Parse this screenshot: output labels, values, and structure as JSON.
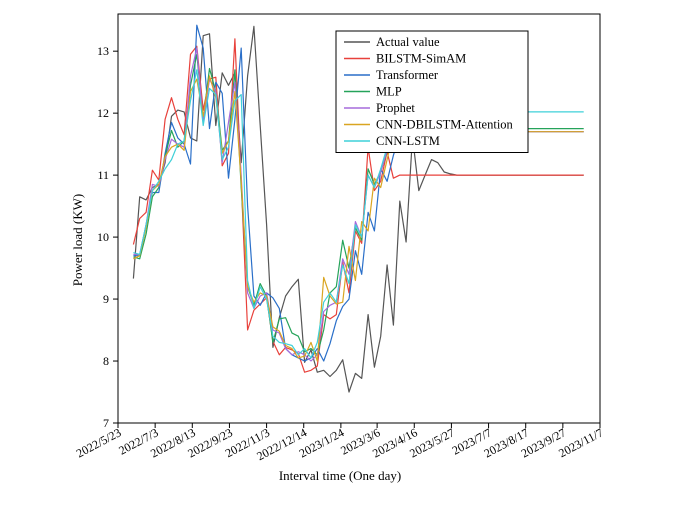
{
  "chart_data": {
    "type": "line",
    "title": "",
    "xlabel": "Interval time (One day)",
    "ylabel": "Power load (KW)",
    "ylim": [
      7,
      13.6
    ],
    "y_ticks": [
      7,
      8,
      9,
      10,
      11,
      12,
      13
    ],
    "y_tick_labels": [
      "7",
      "8",
      "9",
      "10",
      "11",
      "12",
      "13"
    ],
    "x_tick_labels": [
      "2022/5/23",
      "2022/7/3",
      "2022/8/13",
      "2022/9/23",
      "2022/11/3",
      "2022/12/14",
      "2023/1/24",
      "2023/3/6",
      "2023/4/16",
      "2023/5/27",
      "2023/7/7",
      "2023/8/17",
      "2023/9/27",
      "2023/11/7"
    ],
    "x_tick_positions": [
      0,
      41,
      82,
      123,
      164,
      205,
      246,
      286,
      327,
      368,
      409,
      450,
      491,
      532
    ],
    "xlim": [
      0,
      532
    ],
    "grid": false,
    "legend_position": "top-right",
    "x": [
      17,
      24,
      31,
      38,
      45,
      52,
      59,
      66,
      73,
      80,
      87,
      94,
      101,
      108,
      115,
      122,
      129,
      136,
      143,
      150,
      157,
      164,
      171,
      178,
      185,
      192,
      199,
      206,
      213,
      220,
      227,
      234,
      241,
      248,
      255,
      262,
      269,
      276,
      283,
      290,
      297,
      304,
      311,
      318,
      325,
      332,
      339,
      346,
      353,
      360,
      367,
      374,
      381,
      388,
      395,
      402,
      409,
      416,
      423,
      430,
      437,
      444,
      451,
      458,
      465,
      472,
      479,
      486,
      493,
      500,
      507,
      514
    ],
    "series": [
      {
        "name": "Actual value",
        "color": "#555555",
        "values": [
          9.33,
          10.65,
          10.6,
          10.8,
          10.85,
          11.2,
          11.95,
          12.05,
          12.02,
          11.6,
          11.55,
          13.25,
          13.28,
          11.8,
          12.65,
          12.45,
          12.65,
          11.2,
          12.6,
          13.4,
          11.8,
          10.2,
          8.22,
          8.7,
          9.05,
          9.2,
          9.32,
          7.98,
          8.18,
          7.82,
          7.85,
          7.75,
          7.85,
          8.02,
          7.5,
          7.8,
          7.72,
          8.75,
          7.9,
          8.4,
          9.55,
          8.58,
          10.58,
          9.92,
          11.62,
          10.75,
          11.0,
          11.25,
          11.2,
          11.05,
          11.02,
          11.0,
          11.0,
          11.0,
          11.0,
          11.0,
          11.0,
          11.0,
          11.0,
          11.0,
          11.0,
          11.0,
          11.0,
          11.0,
          11.0,
          11.0,
          11.0,
          11.0,
          11.0,
          11.0,
          11.0,
          11.0
        ]
      },
      {
        "name": "BILSTM-SimAM",
        "color": "#e8413b",
        "values": [
          9.88,
          10.3,
          10.4,
          11.08,
          10.92,
          11.9,
          12.25,
          11.9,
          11.65,
          12.95,
          13.08,
          12.05,
          12.55,
          12.58,
          11.15,
          11.35,
          13.2,
          10.9,
          8.5,
          8.82,
          8.92,
          9.02,
          8.32,
          8.1,
          8.22,
          8.18,
          8.12,
          7.82,
          7.85,
          7.92,
          8.75,
          8.68,
          8.75,
          9.6,
          9.1,
          10.1,
          9.9,
          11.45,
          10.75,
          10.9,
          11.38,
          10.95,
          11.0,
          11.0,
          11.0,
          11.0,
          11.0,
          11.0,
          11.0,
          11.0,
          11.0,
          11.0,
          11.0,
          11.0,
          11.0,
          11.0,
          11.0,
          11.0,
          11.0,
          11.0,
          11.0,
          11.0,
          11.0,
          11.0,
          11.0,
          11.0,
          11.0,
          11.0,
          11.0,
          11.0,
          11.0,
          11.0
        ]
      },
      {
        "name": "Transformer",
        "color": "#2a6fc9",
        "values": [
          9.7,
          9.7,
          10.2,
          10.72,
          10.72,
          11.35,
          11.85,
          11.6,
          11.5,
          11.18,
          13.42,
          13.05,
          11.75,
          12.5,
          12.32,
          10.95,
          11.9,
          13.05,
          10.5,
          9.05,
          8.9,
          9.1,
          9.02,
          8.85,
          8.2,
          8.1,
          8.05,
          8.0,
          8.05,
          8.2,
          8.0,
          8.28,
          8.65,
          8.88,
          9.0,
          9.78,
          9.4,
          10.4,
          10.1,
          11.1,
          10.9,
          11.32,
          11.65,
          11.7,
          11.7,
          11.7,
          11.7,
          11.7,
          11.7,
          11.7,
          11.7,
          11.7,
          11.7,
          11.7,
          11.7,
          11.7,
          11.7,
          11.7,
          11.7,
          11.7,
          11.7,
          11.7,
          11.7,
          11.7,
          11.7,
          11.7,
          11.7,
          11.7,
          11.7,
          11.7,
          11.7,
          11.7
        ]
      },
      {
        "name": "MLP",
        "color": "#25a35a",
        "values": [
          9.68,
          9.65,
          10.05,
          10.65,
          10.8,
          11.3,
          11.72,
          11.45,
          11.55,
          12.45,
          12.95,
          11.9,
          12.72,
          12.35,
          11.4,
          11.55,
          12.7,
          10.8,
          9.2,
          8.9,
          9.25,
          9.05,
          8.3,
          8.68,
          8.7,
          8.45,
          8.4,
          8.15,
          8.2,
          8.1,
          8.5,
          9.1,
          9.2,
          9.95,
          9.5,
          10.15,
          9.95,
          11.1,
          10.85,
          11.05,
          11.38,
          11.75,
          11.75,
          11.75,
          11.75,
          11.75,
          11.75,
          11.75,
          11.75,
          11.75,
          11.75,
          11.75,
          11.75,
          11.75,
          11.75,
          11.75,
          11.75,
          11.75,
          11.75,
          11.75,
          11.75,
          11.75,
          11.75,
          11.75,
          11.75,
          11.75,
          11.75,
          11.75,
          11.75,
          11.75,
          11.75,
          11.75
        ]
      },
      {
        "name": "Prophet",
        "color": "#a56bdc",
        "values": [
          9.72,
          9.72,
          10.2,
          10.85,
          10.82,
          11.25,
          11.58,
          11.5,
          11.45,
          12.6,
          13.05,
          11.85,
          12.55,
          12.35,
          11.2,
          11.85,
          12.5,
          11.0,
          9.1,
          8.85,
          9.05,
          9.1,
          8.5,
          8.45,
          8.2,
          8.1,
          8.15,
          8.1,
          8.0,
          8.1,
          8.8,
          8.9,
          8.95,
          9.65,
          9.4,
          10.25,
          10.0,
          11.0,
          10.8,
          11.05,
          11.4,
          11.7,
          11.7,
          11.7,
          11.7,
          11.7,
          11.7,
          11.7,
          11.7,
          11.7,
          11.7,
          11.7,
          11.7,
          11.7,
          11.7,
          11.7,
          11.7,
          11.7,
          11.7,
          11.7,
          11.7,
          11.7,
          11.7,
          11.7,
          11.7,
          11.7,
          11.7,
          11.7,
          11.7,
          11.7,
          11.7,
          11.7
        ]
      },
      {
        "name": "CNN-DBILSTM-Attention",
        "color": "#d9a521",
        "values": [
          9.65,
          9.7,
          10.15,
          10.75,
          10.85,
          11.3,
          11.45,
          11.5,
          11.4,
          12.35,
          12.55,
          11.95,
          12.6,
          12.25,
          11.35,
          11.55,
          12.35,
          10.9,
          9.2,
          8.95,
          9.1,
          9.05,
          8.55,
          8.48,
          8.25,
          8.2,
          8.05,
          8.08,
          8.3,
          8.0,
          9.35,
          9.05,
          8.92,
          8.95,
          9.85,
          9.3,
          10.25,
          10.1,
          10.95,
          10.8,
          11.25,
          11.7,
          11.7,
          11.7,
          11.7,
          11.7,
          11.7,
          11.7,
          11.7,
          11.7,
          11.7,
          11.7,
          11.7,
          11.7,
          11.7,
          11.7,
          11.7,
          11.7,
          11.7,
          11.7,
          11.7,
          11.7,
          11.7,
          11.7,
          11.7,
          11.7,
          11.7,
          11.7,
          11.7,
          11.7,
          11.7,
          11.7
        ]
      },
      {
        "name": "CNN-LSTM",
        "color": "#3fd0d8",
        "values": [
          9.75,
          9.72,
          10.2,
          10.75,
          10.9,
          11.1,
          11.25,
          11.5,
          11.55,
          12.2,
          12.7,
          11.8,
          12.4,
          12.3,
          11.25,
          11.45,
          12.2,
          12.3,
          9.3,
          8.85,
          9.2,
          9.0,
          8.4,
          8.3,
          8.28,
          8.25,
          8.1,
          8.2,
          8.05,
          8.3,
          8.95,
          9.1,
          8.95,
          9.55,
          9.25,
          10.2,
          10.0,
          11.0,
          10.8,
          11.1,
          11.45,
          12.02,
          12.02,
          12.02,
          12.02,
          12.02,
          12.02,
          12.02,
          12.02,
          12.02,
          12.02,
          12.02,
          12.02,
          12.02,
          12.02,
          12.02,
          12.02,
          12.02,
          12.02,
          12.02,
          12.02,
          12.02,
          12.02,
          12.02,
          12.02,
          12.02,
          12.02,
          12.02,
          12.02,
          12.02,
          12.02,
          12.02
        ]
      }
    ]
  }
}
